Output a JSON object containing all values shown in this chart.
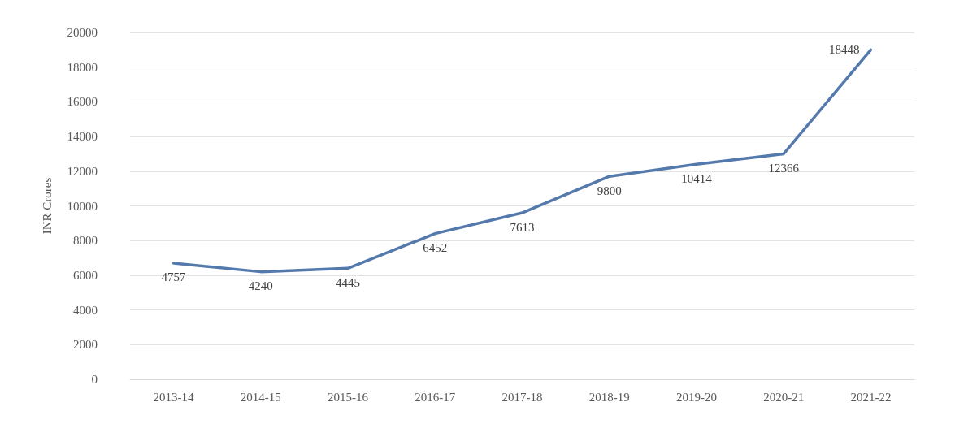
{
  "chart_data": {
    "type": "line",
    "ylabel": "INR Crores",
    "categories": [
      "2013-14",
      "2014-15",
      "2015-16",
      "2016-17",
      "2017-18",
      "2018-19",
      "2019-20",
      "2020-21",
      "2021-22"
    ],
    "series": [
      {
        "color": "#5479ad",
        "values": [
          6700,
          6200,
          6400,
          8400,
          9600,
          11700,
          12400,
          13000,
          19000
        ]
      }
    ],
    "annotations": [
      {
        "text": "4757",
        "x": "2013-14",
        "y": 6700
      },
      {
        "text": "4240",
        "x": "2014-15",
        "y": 6200
      },
      {
        "text": "4445",
        "x": "2015-16",
        "y": 6400
      },
      {
        "text": "6452",
        "x": "2016-17",
        "y": 8400
      },
      {
        "text": "7613",
        "x": "2017-18",
        "y": 9600
      },
      {
        "text": "9800",
        "x": "2018-19",
        "y": 11700
      },
      {
        "text": "10414",
        "x": "2019-20",
        "y": 12400
      },
      {
        "text": "12366",
        "x": "2020-21",
        "y": 13000
      },
      {
        "text": "18448",
        "x": "2021-22",
        "y": 19000
      }
    ],
    "ylim": [
      0,
      20000
    ],
    "yticks": [
      0,
      2000,
      4000,
      6000,
      8000,
      10000,
      12000,
      14000,
      16000,
      18000,
      20000
    ],
    "grid": "y",
    "marker": "none",
    "line_style": "solid"
  }
}
